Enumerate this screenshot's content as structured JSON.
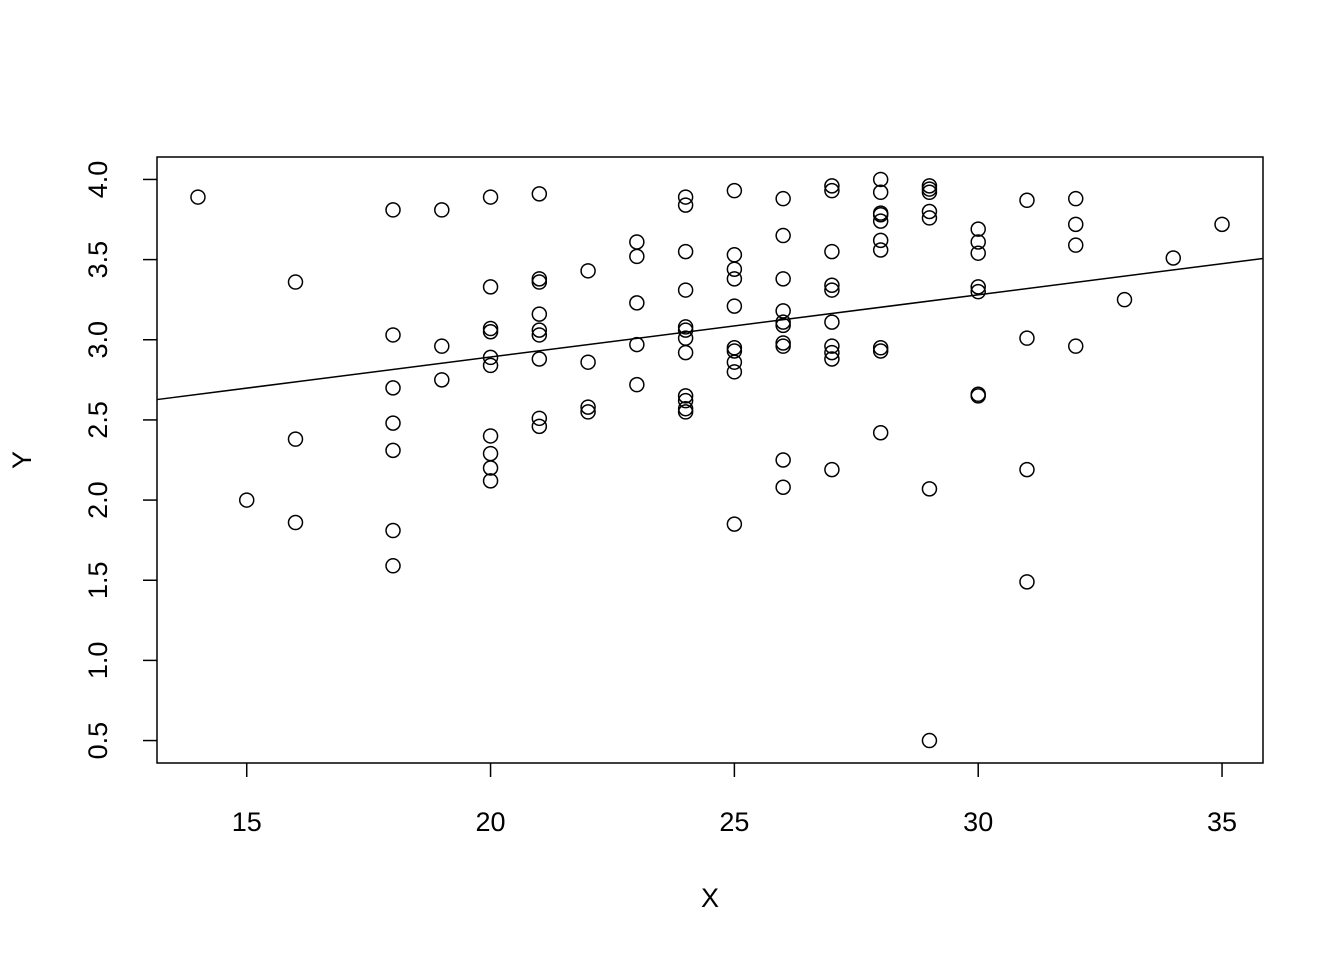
{
  "chart_data": {
    "type": "scatter",
    "x_label": "X",
    "y_label": "Y",
    "xlim": [
      13.16,
      35.84
    ],
    "ylim": [
      0.36,
      4.14
    ],
    "xticks": [
      15,
      20,
      25,
      30,
      35
    ],
    "yticks": [
      0.5,
      {
        "value": 1,
        "label": "1.0"
      },
      1.5,
      {
        "value": 2,
        "label": "2.0"
      },
      2.5,
      {
        "value": 3,
        "label": "3.0"
      },
      3.5,
      {
        "value": 4,
        "label": "4.0"
      }
    ],
    "color": "#000000",
    "series": [
      {
        "type": "scatter",
        "x": [
          14,
          15,
          16,
          16,
          16,
          18,
          18,
          18,
          18,
          18,
          18,
          18,
          19,
          19,
          19,
          20,
          20,
          20,
          20,
          20,
          20,
          20,
          20,
          20,
          20,
          21,
          21,
          21,
          21,
          21,
          21,
          21,
          21,
          21,
          22,
          22,
          22,
          22,
          23,
          23,
          23,
          23,
          23,
          24,
          24,
          24,
          24,
          24,
          24,
          24,
          24,
          24,
          24,
          24,
          24,
          25,
          25,
          25,
          25,
          25,
          25,
          25,
          25,
          25,
          25,
          26,
          26,
          26,
          26,
          26,
          26,
          26,
          26,
          26,
          26,
          27,
          27,
          27,
          27,
          27,
          27,
          27,
          27,
          27,
          27,
          28,
          28,
          28,
          28,
          28,
          28,
          28,
          28,
          28,
          28,
          29,
          29,
          29,
          29,
          29,
          29,
          29,
          30,
          30,
          30,
          30,
          30,
          30,
          30,
          31,
          31,
          31,
          31,
          32,
          32,
          32,
          32,
          33,
          34,
          35
        ],
        "values": [
          3.89,
          2.0,
          3.36,
          2.38,
          1.86,
          3.81,
          3.03,
          2.7,
          2.48,
          2.31,
          1.81,
          1.59,
          3.81,
          2.96,
          2.75,
          3.89,
          3.33,
          3.07,
          3.05,
          2.89,
          2.84,
          2.4,
          2.29,
          2.2,
          2.12,
          3.91,
          3.38,
          3.36,
          3.16,
          3.06,
          3.03,
          2.88,
          2.51,
          2.46,
          3.43,
          2.86,
          2.58,
          2.55,
          3.61,
          3.52,
          3.23,
          2.97,
          2.72,
          3.89,
          3.84,
          3.55,
          3.31,
          3.08,
          3.06,
          3.01,
          2.92,
          2.65,
          2.62,
          2.57,
          2.55,
          3.93,
          3.53,
          3.44,
          3.38,
          3.21,
          2.95,
          2.93,
          2.86,
          2.8,
          1.85,
          3.88,
          3.65,
          3.38,
          3.18,
          3.11,
          3.09,
          2.98,
          2.96,
          2.25,
          2.08,
          3.96,
          3.93,
          3.55,
          3.34,
          3.31,
          3.11,
          2.96,
          2.92,
          2.88,
          2.19,
          4.0,
          3.92,
          3.79,
          3.78,
          3.74,
          3.62,
          3.56,
          2.95,
          2.93,
          2.42,
          3.96,
          3.94,
          3.92,
          3.8,
          3.76,
          2.07,
          0.5,
          3.69,
          3.61,
          3.54,
          3.33,
          3.3,
          2.66,
          2.65,
          3.87,
          3.01,
          2.19,
          1.49,
          3.88,
          3.72,
          3.59,
          2.96,
          3.25,
          3.51,
          3.72
        ]
      },
      {
        "type": "line",
        "x": [
          13.16,
          35.84
        ],
        "values": [
          2.627,
          3.507
        ]
      }
    ]
  }
}
